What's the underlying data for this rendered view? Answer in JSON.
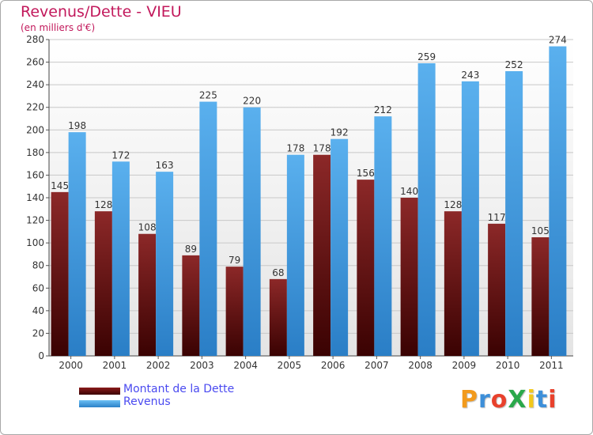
{
  "header": {
    "title": "Revenus/Dette - VIEU",
    "subtitle": "(en milliers d'€)"
  },
  "chart_data": {
    "type": "bar",
    "categories": [
      "2000",
      "2001",
      "2002",
      "2003",
      "2004",
      "2005",
      "2006",
      "2007",
      "2008",
      "2009",
      "2010",
      "2011"
    ],
    "series": [
      {
        "name": "Montant de la Dette",
        "color": "#7a1414",
        "values": [
          145,
          128,
          108,
          89,
          79,
          68,
          178,
          156,
          140,
          128,
          117,
          105
        ]
      },
      {
        "name": "Revenus",
        "color": "#4aa3e8",
        "values": [
          198,
          172,
          163,
          225,
          220,
          178,
          192,
          212,
          259,
          243,
          252,
          274
        ]
      }
    ],
    "ylim": [
      0,
      280
    ],
    "yticks": [
      0,
      20,
      40,
      60,
      80,
      100,
      120,
      140,
      160,
      180,
      200,
      220,
      240,
      260,
      280
    ],
    "grid": true,
    "legend_position": "bottom-left"
  },
  "legend": {
    "items": [
      {
        "label": "Montant de la Dette",
        "color": "#5a0a0a"
      },
      {
        "label": "Revenus",
        "color": "#4aa3e8"
      }
    ]
  },
  "logo": {
    "text": "ProXiti",
    "letter_colors": [
      "#f29a1c",
      "#3d8fd9",
      "#e8412c",
      "#2aa84a",
      "#f2c81c",
      "#3d8fd9",
      "#e8412c"
    ]
  }
}
